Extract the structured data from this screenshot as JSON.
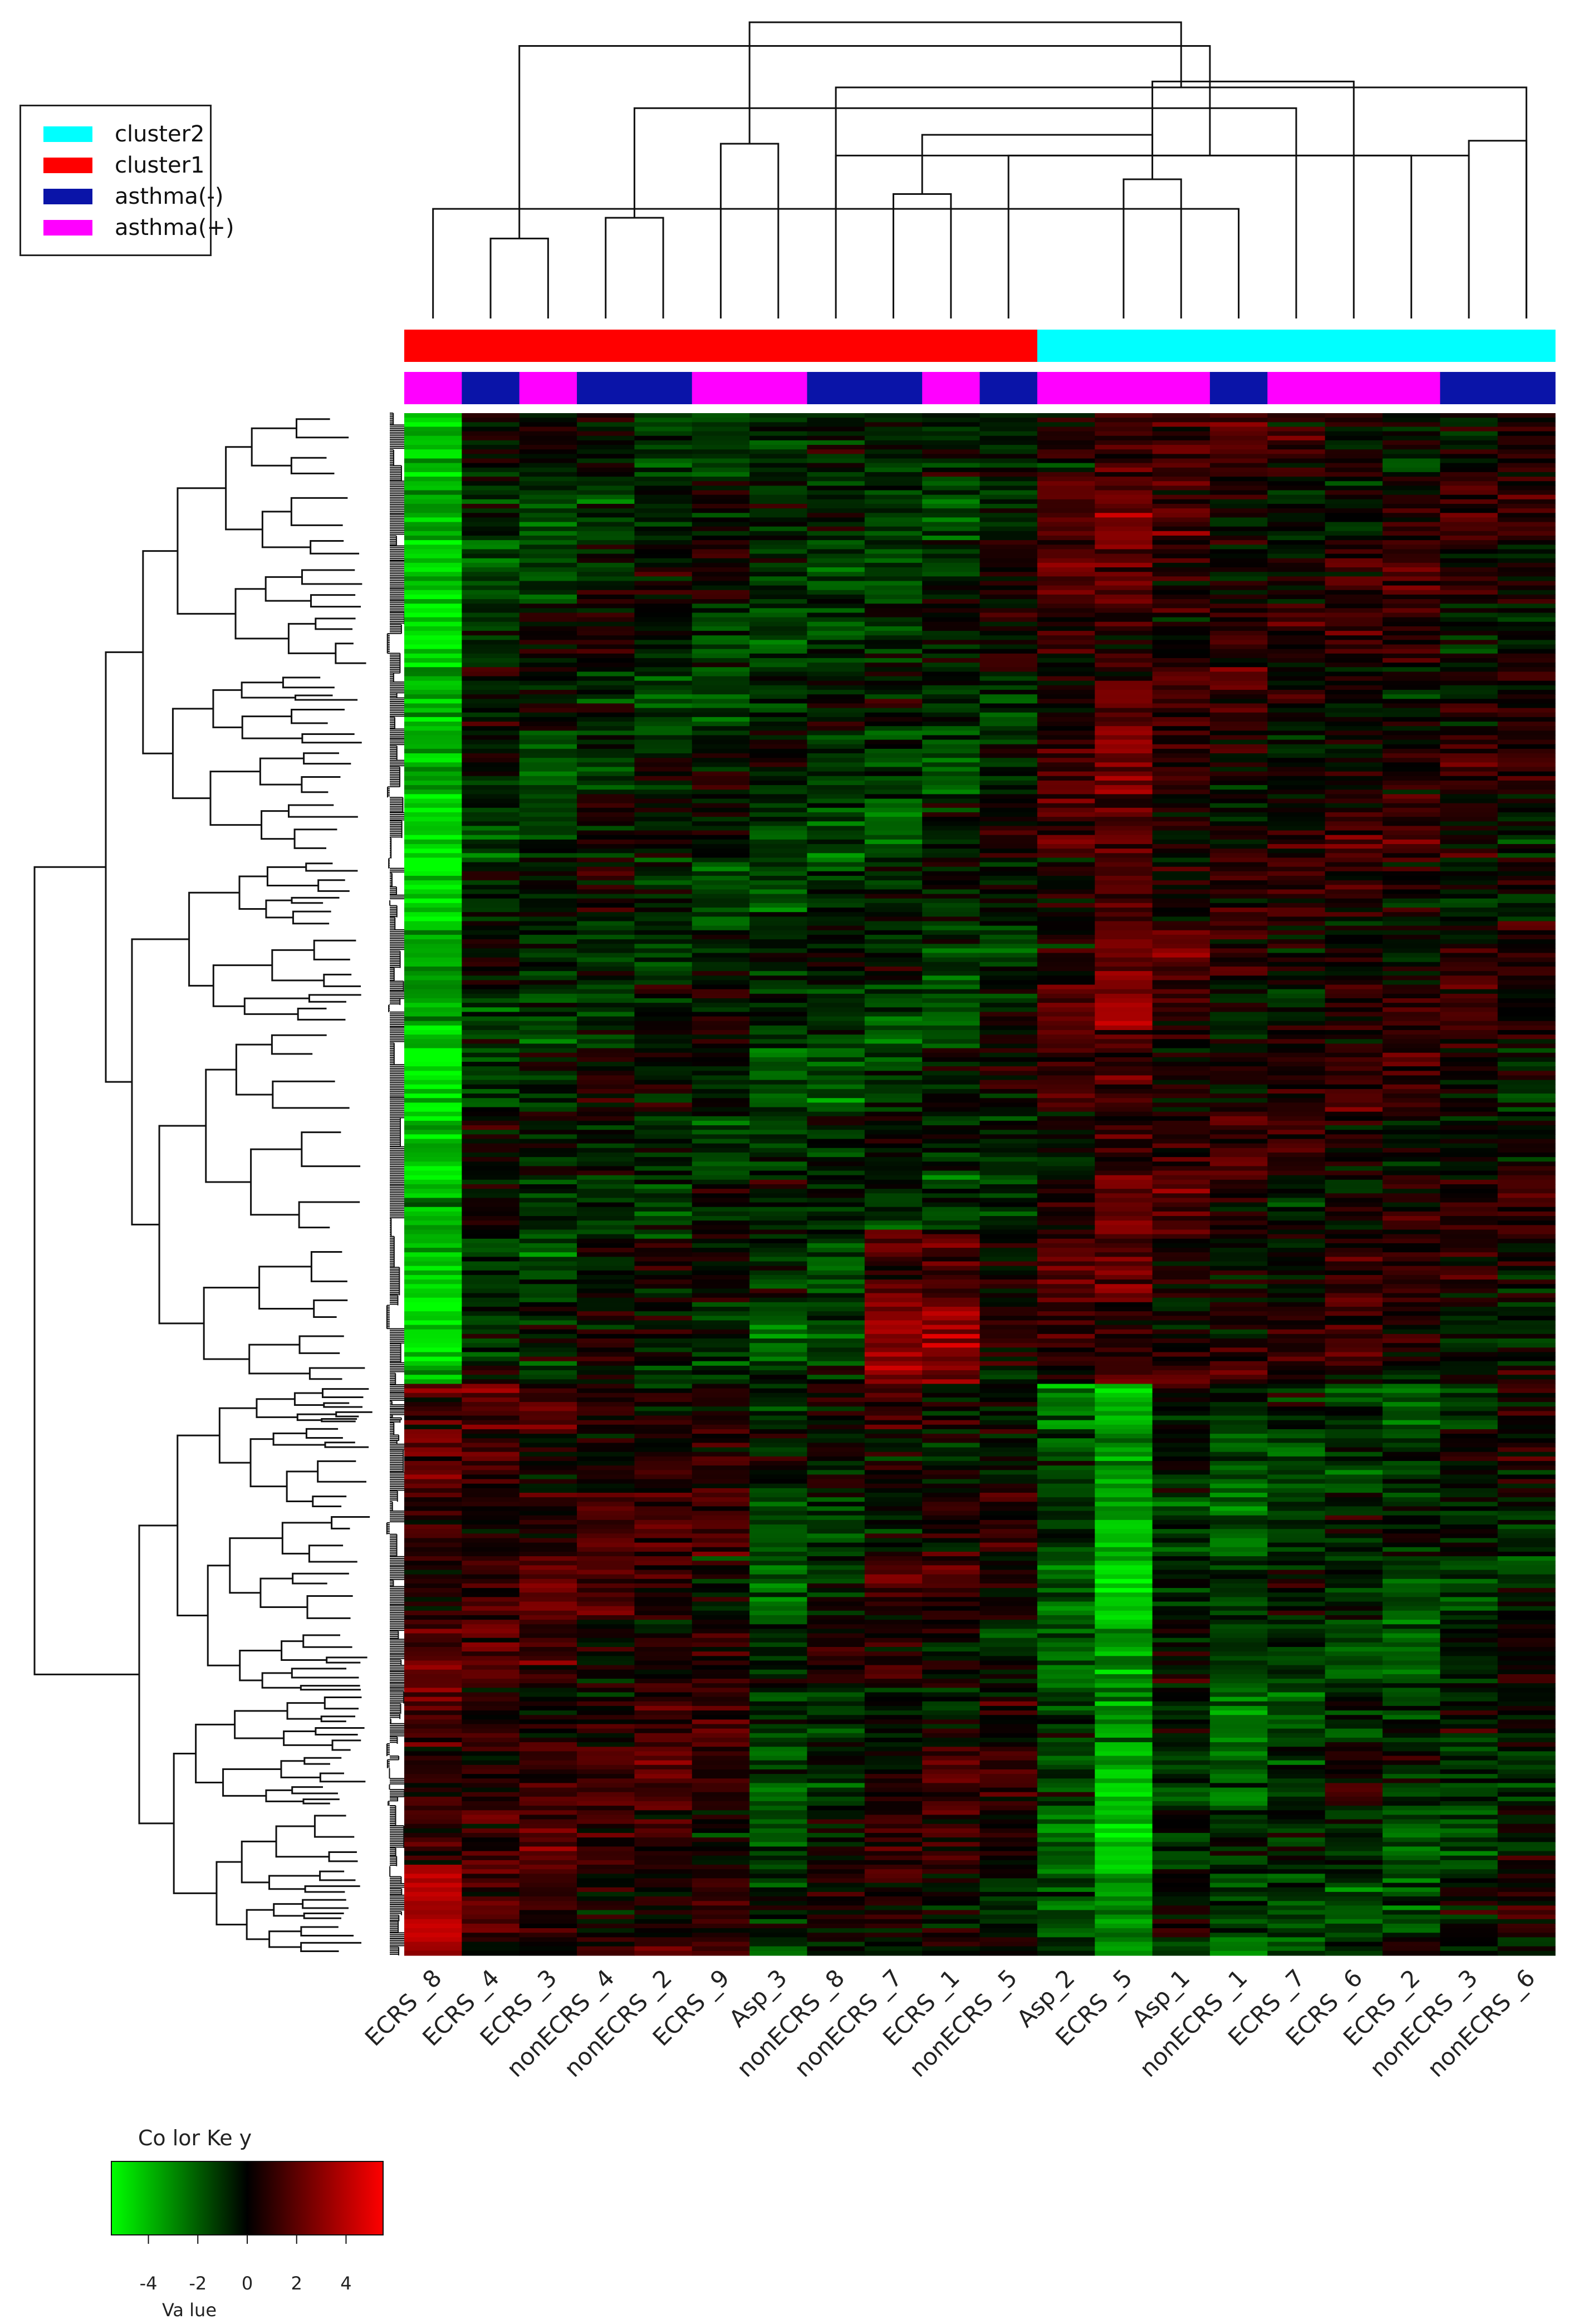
{
  "chart_data": {
    "type": "heatmap",
    "title": "",
    "legend": {
      "placement": "top-left",
      "entries": [
        {
          "label": "cluster2",
          "color": "#00ffff"
        },
        {
          "label": "cluster1",
          "color": "#ff0000"
        },
        {
          "label": "asthma(-)",
          "color": "#0a14a8"
        },
        {
          "label": "asthma(+)",
          "color": "#ff00ff"
        }
      ]
    },
    "columns": [
      {
        "label": "ECRS _8",
        "cluster": "cluster1",
        "asthma": "+"
      },
      {
        "label": "ECRS _4",
        "cluster": "cluster1",
        "asthma": "-"
      },
      {
        "label": "ECRS _3",
        "cluster": "cluster1",
        "asthma": "+"
      },
      {
        "label": "nonECRS _4",
        "cluster": "cluster1",
        "asthma": "-"
      },
      {
        "label": "nonECRS _2",
        "cluster": "cluster1",
        "asthma": "-"
      },
      {
        "label": "ECRS _9",
        "cluster": "cluster1",
        "asthma": "+"
      },
      {
        "label": "Asp_3",
        "cluster": "cluster1",
        "asthma": "+"
      },
      {
        "label": "nonECRS _8",
        "cluster": "cluster1",
        "asthma": "-"
      },
      {
        "label": "nonECRS _7",
        "cluster": "cluster1",
        "asthma": "-"
      },
      {
        "label": "ECRS _1",
        "cluster": "cluster1",
        "asthma": "+"
      },
      {
        "label": "nonECRS _5",
        "cluster": "cluster1",
        "asthma": "-"
      },
      {
        "label": "Asp_2",
        "cluster": "cluster2",
        "asthma": "+"
      },
      {
        "label": "ECRS _5",
        "cluster": "cluster2",
        "asthma": "+"
      },
      {
        "label": "Asp_1",
        "cluster": "cluster2",
        "asthma": "+"
      },
      {
        "label": "nonECRS _1",
        "cluster": "cluster2",
        "asthma": "-"
      },
      {
        "label": "ECRS _7",
        "cluster": "cluster2",
        "asthma": "+"
      },
      {
        "label": "ECRS _6",
        "cluster": "cluster2",
        "asthma": "+"
      },
      {
        "label": "ECRS _2",
        "cluster": "cluster2",
        "asthma": "+"
      },
      {
        "label": "nonECRS _3",
        "cluster": "cluster2",
        "asthma": "-"
      },
      {
        "label": "nonECRS _6",
        "cluster": "cluster2",
        "asthma": "-"
      }
    ],
    "color_key": {
      "title": "Co lor Ke y",
      "xlabel": "Va lue",
      "range": [
        -5.5,
        5.5
      ],
      "ticks": [
        "-4",
        "-2",
        "0",
        "2",
        "4"
      ],
      "tick_values": [
        -4,
        -2,
        0,
        2,
        4
      ],
      "colors": [
        "#00ff00",
        "#000000",
        "#ff0000"
      ]
    },
    "column_dendrogram": {
      "merges": [
        [
          1,
          2,
          0.27
        ],
        [
          0,
          14,
          0.37
        ],
        [
          4,
          3,
          0.34
        ],
        [
          13,
          12,
          0.47
        ],
        [
          8,
          9,
          0.42
        ],
        [
          7,
          18,
          0.55
        ],
        [
          10,
          17,
          0.55
        ],
        [
          6,
          5,
          0.59
        ],
        [
          21,
          19,
          0.78
        ],
        [
          19,
          18,
          0.6
        ],
        [
          22,
          15,
          0.71
        ],
        [
          24,
          23,
          0.62
        ],
        [
          25,
          16,
          0.8
        ],
        [
          26,
          20,
          0.92
        ],
        [
          27,
          28,
          1.0
        ]
      ]
    }
  }
}
